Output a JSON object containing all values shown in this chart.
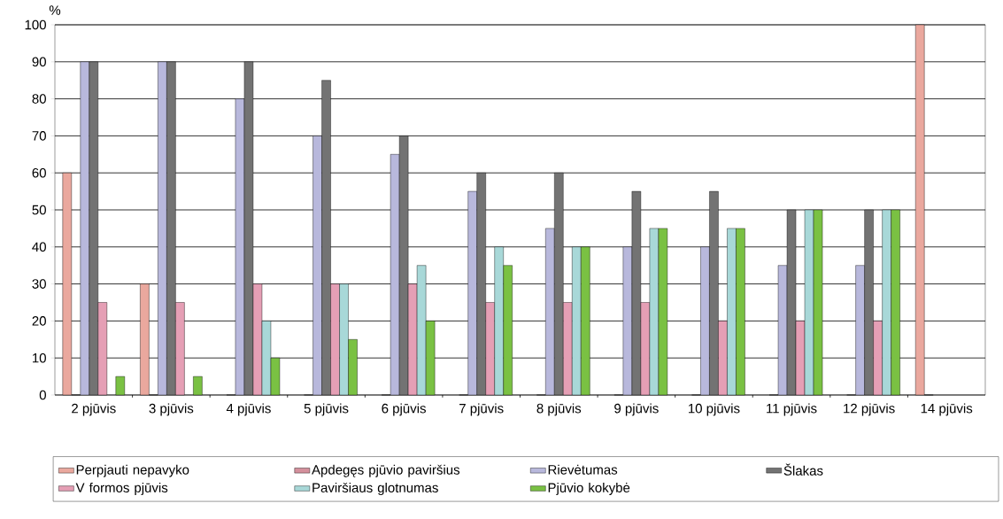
{
  "chart_data": {
    "type": "bar",
    "ylabel": "%",
    "categories": [
      "2 pjūvis",
      "3 pjūvis",
      "4 pjūvis",
      "5 pjūvis",
      "6 pjūvis",
      "7 pjūvis",
      "8 pjūvis",
      "9 pjūvis",
      "10 pjūvis",
      "11 pjūvis",
      "12 pjūvis",
      "14 pjūvis"
    ],
    "series": [
      {
        "name": "Perpjauti nepavyko",
        "color": "#eaa89e",
        "values": [
          60,
          30,
          null,
          null,
          null,
          null,
          null,
          null,
          null,
          null,
          null,
          100
        ]
      },
      {
        "name": "Apdegęs pjūvio paviršius",
        "color": "#d4909c",
        "values": [
          0,
          0,
          0,
          0,
          0,
          0,
          0,
          0,
          0,
          0,
          0,
          0
        ]
      },
      {
        "name": "Rievėtumas",
        "color": "#b8b8dc",
        "values": [
          90,
          90,
          80,
          70,
          65,
          55,
          45,
          40,
          40,
          35,
          35,
          null
        ]
      },
      {
        "name": "Šlakas",
        "color": "#737373",
        "values": [
          90,
          90,
          90,
          85,
          70,
          60,
          60,
          55,
          55,
          50,
          50,
          null
        ]
      },
      {
        "name": "V formos pjūvis",
        "color": "#e59fb5",
        "values": [
          25,
          25,
          30,
          30,
          30,
          25,
          25,
          25,
          20,
          20,
          20,
          null
        ]
      },
      {
        "name": "Paviršiaus glotnumas",
        "color": "#a8d8d8",
        "values": [
          null,
          null,
          20,
          30,
          35,
          40,
          40,
          45,
          45,
          50,
          50,
          null
        ]
      },
      {
        "name": "Pjūvio kokybė",
        "color": "#7ac143",
        "values": [
          5,
          5,
          10,
          15,
          20,
          35,
          40,
          45,
          45,
          50,
          50,
          null
        ]
      }
    ],
    "ylim": [
      0,
      100
    ],
    "yticks": [
      0,
      10,
      20,
      30,
      40,
      50,
      60,
      70,
      80,
      90,
      100
    ],
    "grid": "y",
    "legend": "bottom"
  }
}
